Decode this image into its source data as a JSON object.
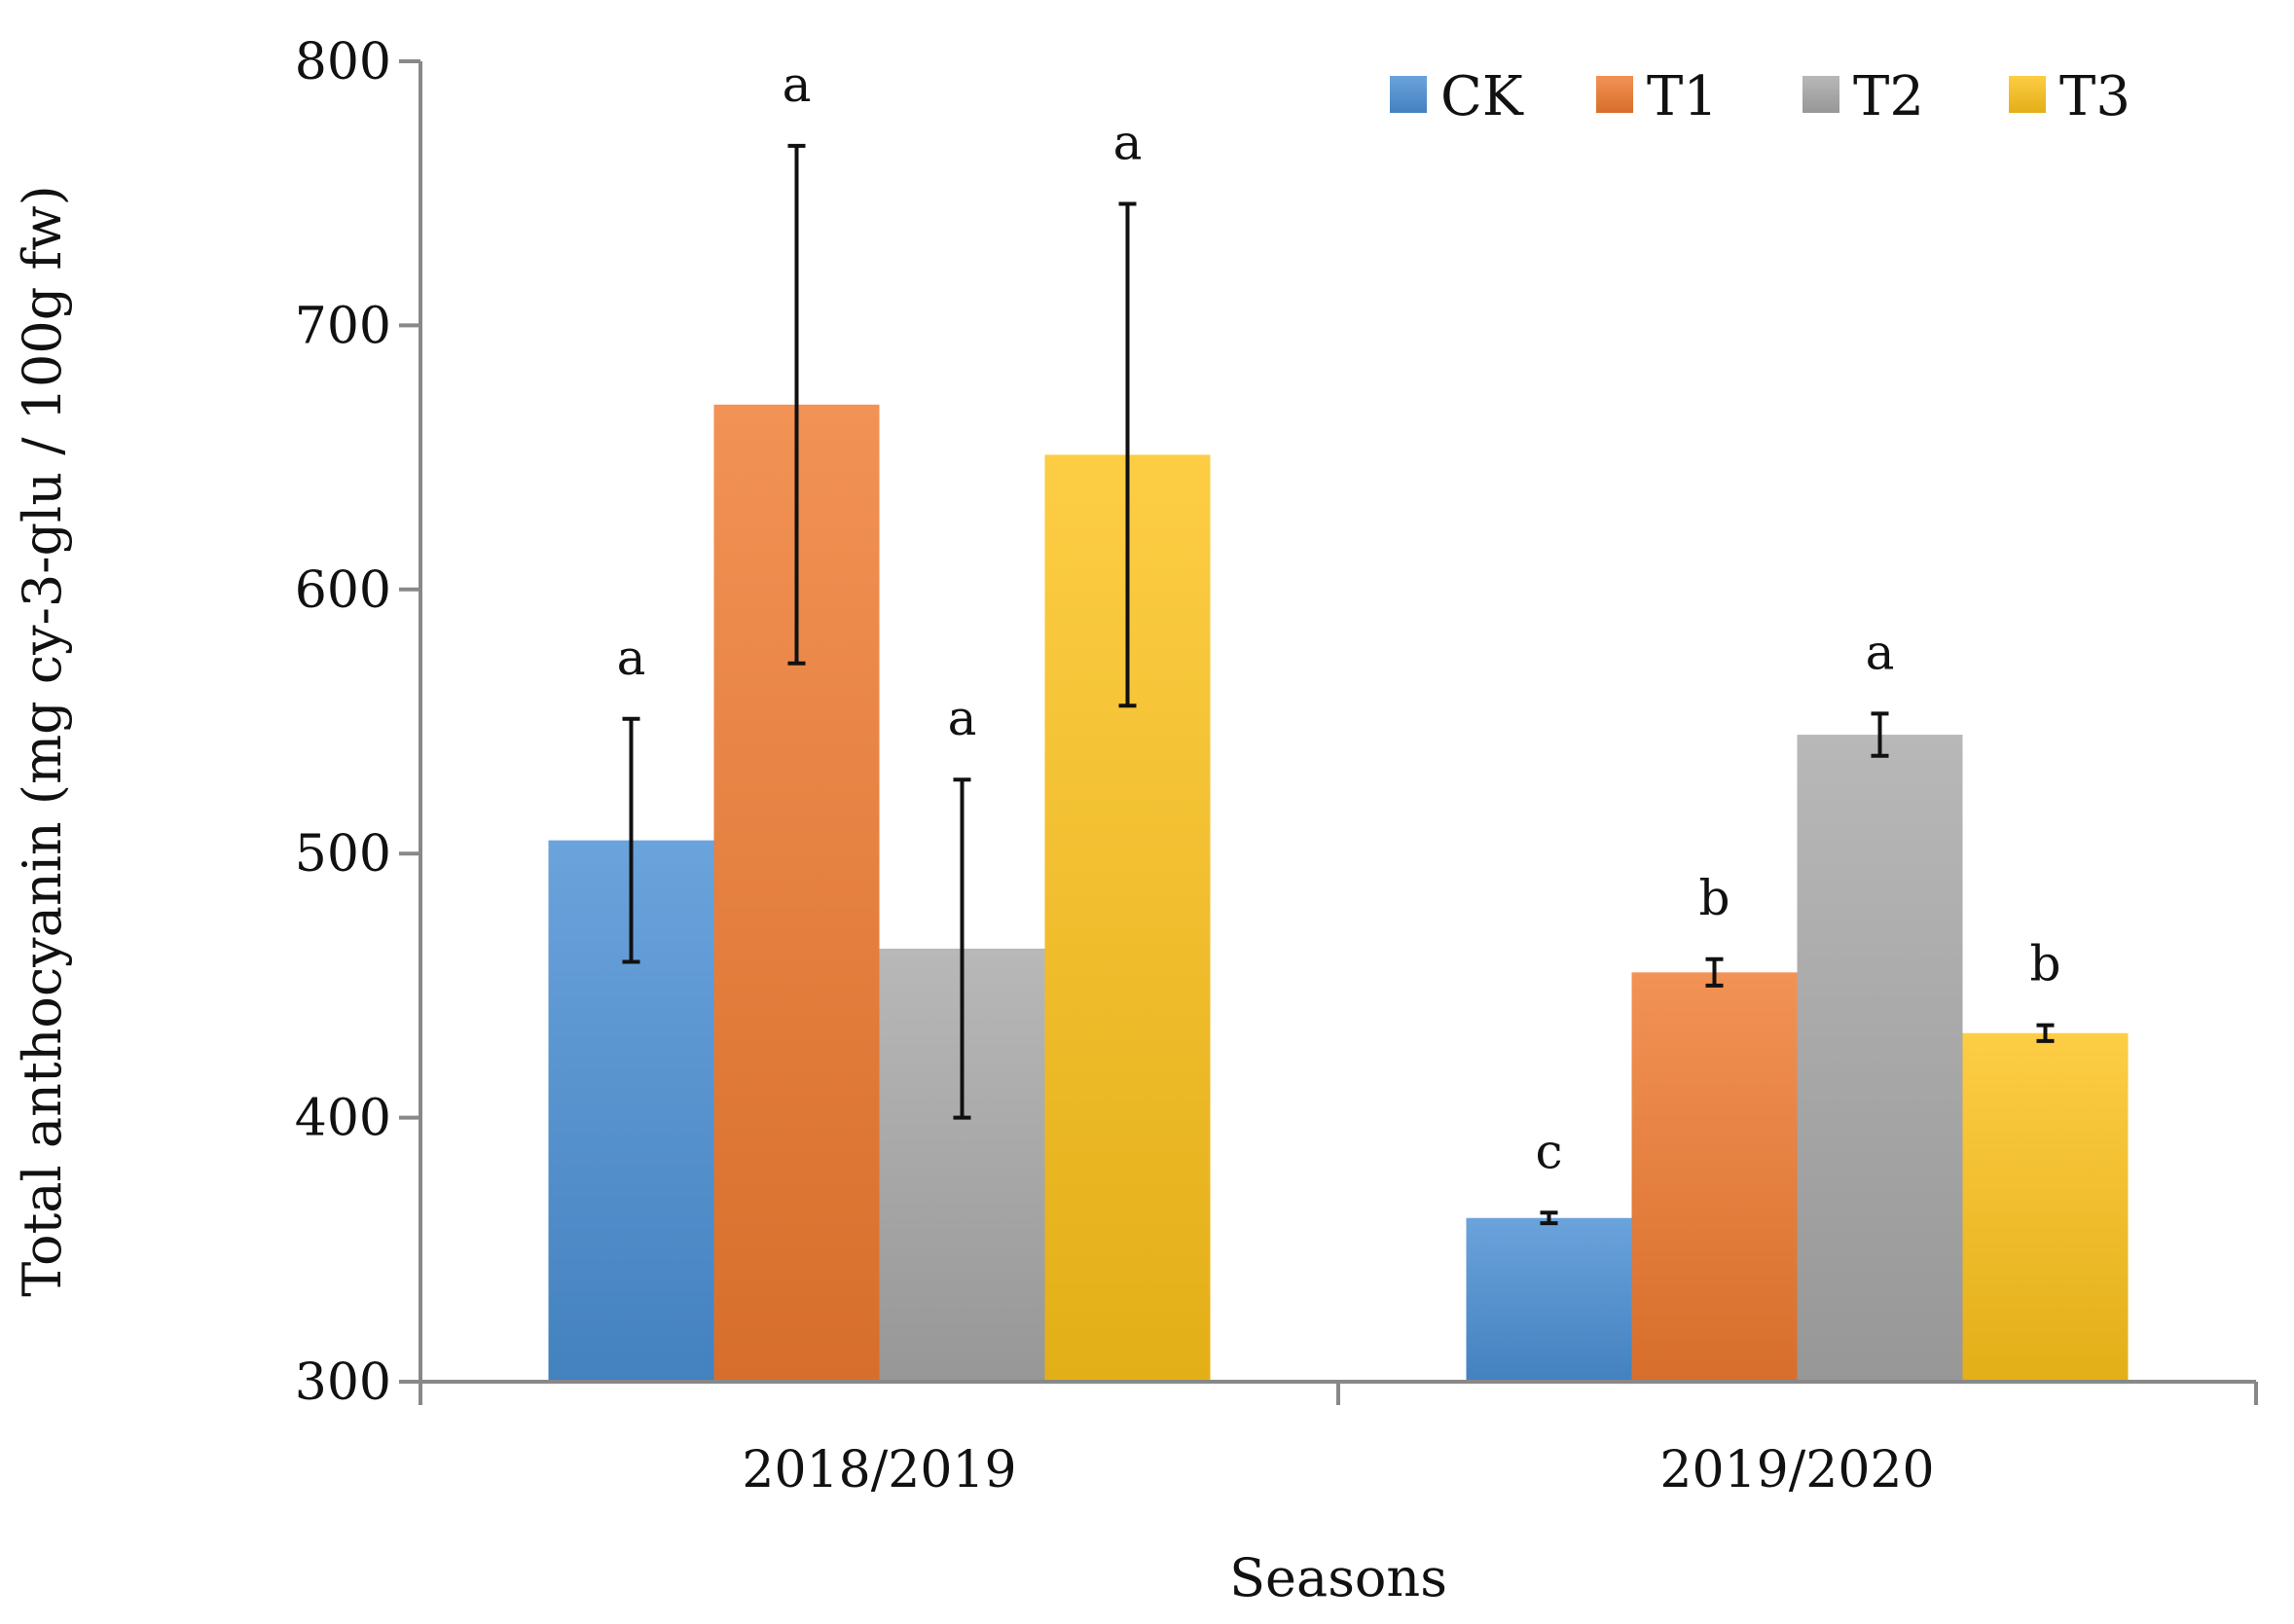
{
  "chart_data": {
    "type": "bar",
    "title": "",
    "xlabel": "Seasons",
    "ylabel": "Total anthocyanin (mg cy-3-glu / 100g fw)",
    "ylim": [
      300,
      800
    ],
    "yticks": [
      300,
      400,
      500,
      600,
      700,
      800
    ],
    "categories": [
      "2018/2019",
      "2019/2020"
    ],
    "legend_position": "top-right",
    "series": [
      {
        "name": "CK",
        "color": "#4a8fd4",
        "values": [
          505,
          362
        ],
        "errors": [
          46,
          2
        ],
        "letters": [
          "a",
          "c"
        ]
      },
      {
        "name": "T1",
        "color": "#ef7a30",
        "values": [
          670,
          455
        ],
        "errors": [
          98,
          5
        ],
        "letters": [
          "a",
          "b"
        ]
      },
      {
        "name": "T2",
        "color": "#a8a8a8",
        "values": [
          464,
          545
        ],
        "errors": [
          64,
          8
        ],
        "letters": [
          "a",
          "a"
        ]
      },
      {
        "name": "T3",
        "color": "#fcc21b",
        "values": [
          651,
          432
        ],
        "errors": [
          95,
          3
        ],
        "letters": [
          "a",
          "b"
        ]
      }
    ]
  }
}
